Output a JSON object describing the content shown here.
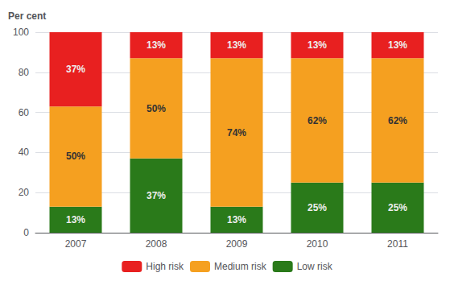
{
  "chart_data": {
    "type": "bar",
    "stacked": true,
    "ylabel": "Per cent",
    "categories": [
      "2007",
      "2008",
      "2009",
      "2010",
      "2011"
    ],
    "series": [
      {
        "name": "Low risk",
        "color": "#2a7a1a",
        "values": [
          13,
          37,
          13,
          25,
          25
        ],
        "value_labels": [
          "13%",
          "37%",
          "13%",
          "25%",
          "25%"
        ]
      },
      {
        "name": "Medium risk",
        "color": "#f5a020",
        "values": [
          50,
          50,
          74,
          62,
          62
        ],
        "value_labels": [
          "50%",
          "50%",
          "74%",
          "62%",
          "62%"
        ]
      },
      {
        "name": "High risk",
        "color": "#e82020",
        "values": [
          37,
          13,
          13,
          13,
          13
        ],
        "value_labels": [
          "37%",
          "13%",
          "13%",
          "13%",
          "13%"
        ]
      }
    ],
    "ylim": [
      0,
      100
    ],
    "yticks": [
      0,
      20,
      40,
      60,
      80,
      100
    ],
    "grid": true,
    "data_labels": true,
    "legend": "bottom"
  }
}
